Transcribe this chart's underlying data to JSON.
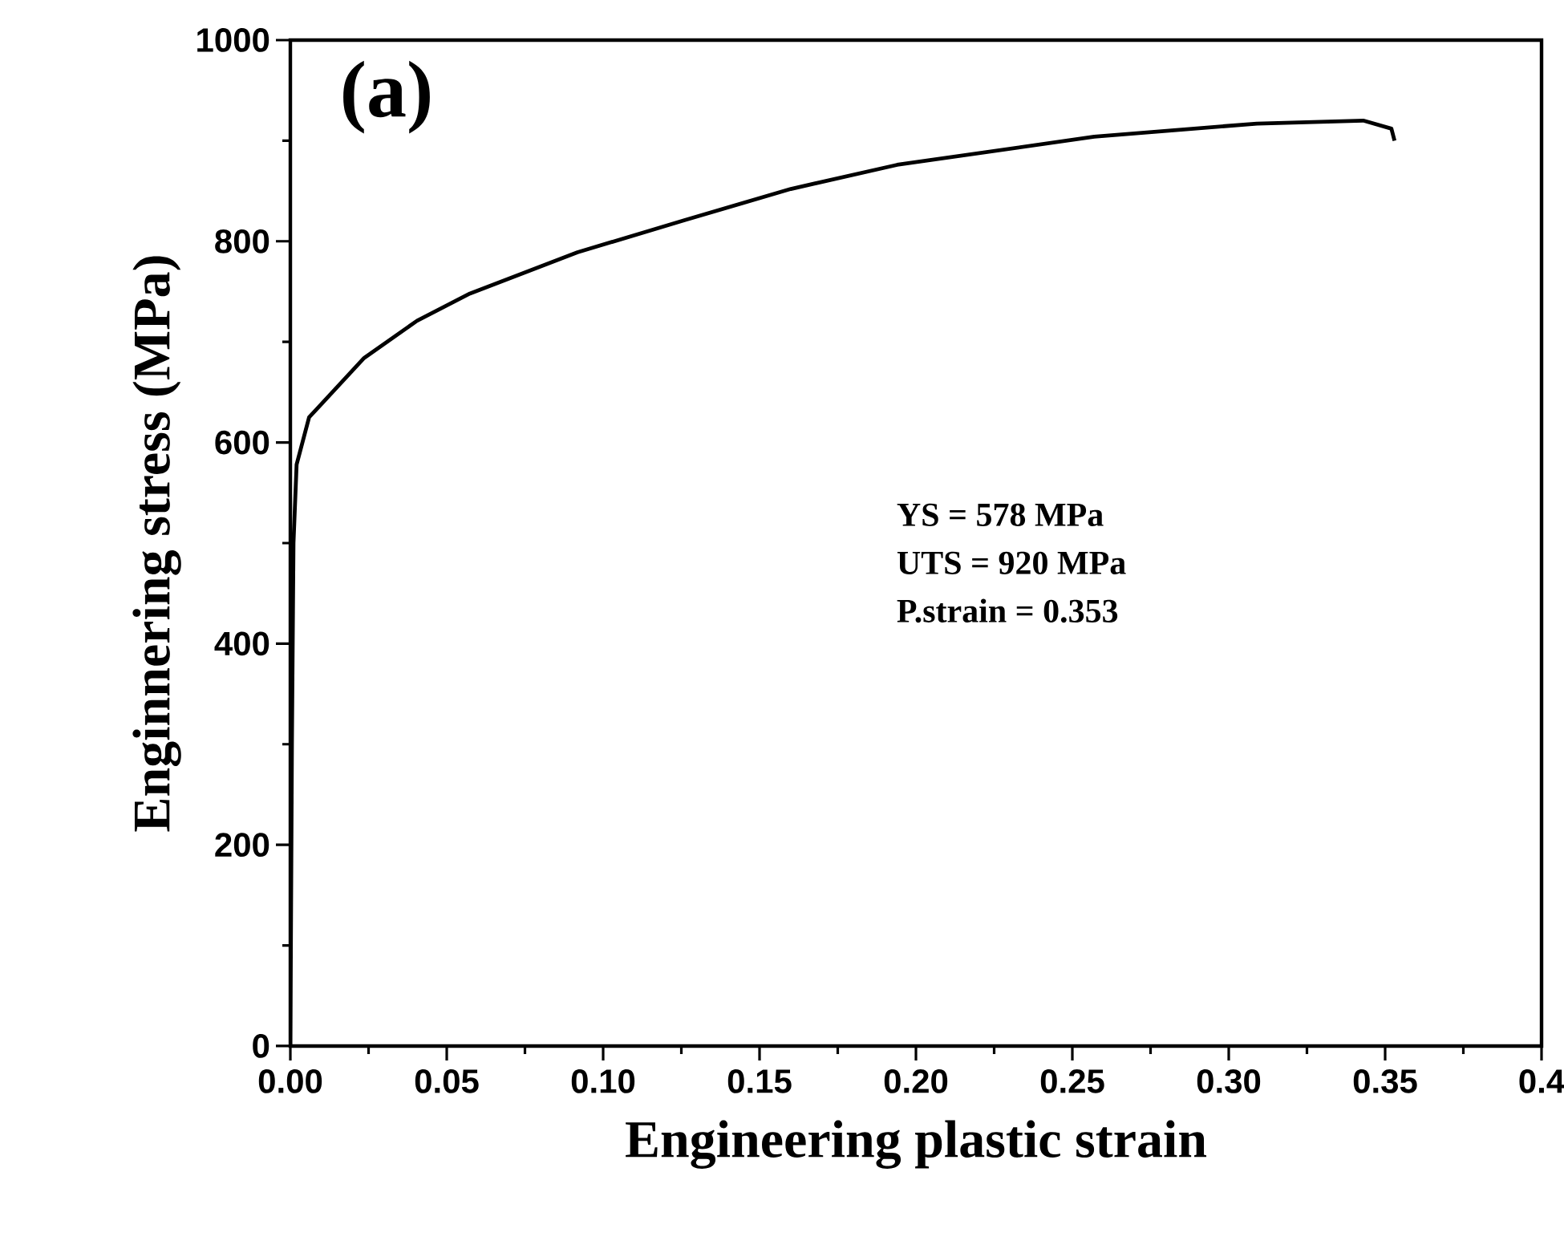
{
  "chart_data": {
    "type": "line",
    "xlabel": "Engineering plastic strain",
    "ylabel": "Enginnering stress (MPa)",
    "annotations": [
      "(a)",
      "YS = 578   MPa",
      "UTS = 920 MPa",
      "P.strain = 0.353"
    ],
    "x": [
      0,
      0.0005,
      0.001,
      0.002,
      0.006,
      0.0236,
      0.0405,
      0.0574,
      0.0918,
      0.126,
      0.16,
      0.194,
      0.257,
      0.309,
      0.343,
      0.352,
      0.353
    ],
    "series": [
      {
        "color": "#000000",
        "values": [
          0,
          300,
          500,
          578,
          625,
          684,
          721,
          748,
          789,
          821,
          852,
          876,
          904,
          917,
          920,
          912,
          900
        ]
      }
    ],
    "xlim": [
      0,
      0.4
    ],
    "ylim": [
      0,
      1000
    ],
    "xticks": [
      {
        "value": 0,
        "label": "0.00"
      },
      {
        "value": 0.05,
        "label": "0.05"
      },
      {
        "value": 0.1,
        "label": "0.10"
      },
      {
        "value": 0.15,
        "label": "0.15"
      },
      {
        "value": 0.2,
        "label": "0.20"
      },
      {
        "value": 0.25,
        "label": "0.25"
      },
      {
        "value": 0.3,
        "label": "0.30"
      },
      {
        "value": 0.35,
        "label": "0.35"
      },
      {
        "value": 0.4,
        "label": "0.4"
      }
    ],
    "yticks": [
      0,
      200,
      400,
      600,
      800,
      1000
    ],
    "grid": false,
    "marker": "none",
    "line_style": "solid"
  }
}
